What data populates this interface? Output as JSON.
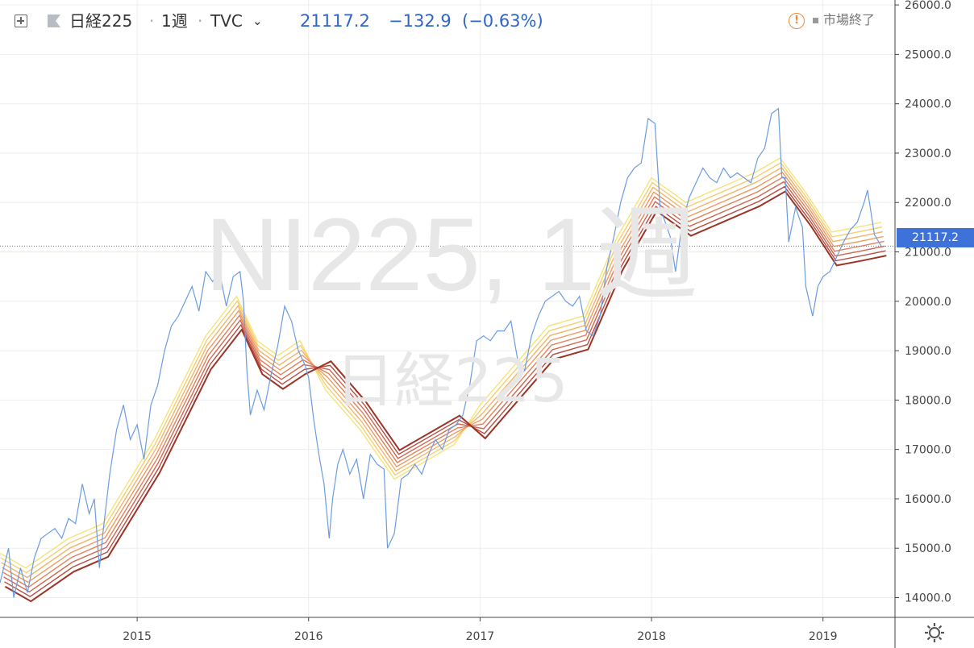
{
  "toolbar": {
    "symbol": "日経225",
    "interval": "1週",
    "source": "TVC",
    "last": "21117.2",
    "change": "−132.9",
    "change_pct": "(−0.63%)",
    "market_status": "市場終了",
    "expand_icon": "expand-icon",
    "flag_icon": "flag-icon",
    "alert_icon": "warning-icon"
  },
  "watermark": {
    "line1": "NI225, 1週",
    "line2": "日経225"
  },
  "price_label": "21117.2",
  "colors": {
    "price_line": "#6b9be0",
    "accent": "#3e72d8",
    "ribbon": [
      "#f5e37a",
      "#f4cf72",
      "#f2b46a",
      "#ec9a62",
      "#e0805a",
      "#cf6650",
      "#b84c42",
      "#9c3426"
    ]
  },
  "chart_data": {
    "type": "line",
    "title": "",
    "xlabel": "",
    "ylabel": "",
    "x_ticks": [
      "2015",
      "2016",
      "2017",
      "2018",
      "2019"
    ],
    "x_tick_years": [
      2015.0,
      2016.0,
      2017.0,
      2018.0,
      2019.0
    ],
    "x_range": [
      2014.2,
      2019.42
    ],
    "y_ticks": [
      14000,
      15000,
      16000,
      17000,
      18000,
      19000,
      20000,
      21000,
      22000,
      23000,
      24000,
      25000,
      26000
    ],
    "y_tick_labels": [
      "14000.0",
      "15000.0",
      "16000.0",
      "17000.0",
      "18000.0",
      "19000.0",
      "20000.0",
      "21000.0",
      "22000.0",
      "23000.0",
      "24000.0",
      "25000.0",
      "26000.0"
    ],
    "ylim": [
      13600,
      26100
    ],
    "grid": true,
    "last_value": 21117.2,
    "price": [
      [
        2014.2,
        14300
      ],
      [
        2014.25,
        15000
      ],
      [
        2014.28,
        14000
      ],
      [
        2014.32,
        14600
      ],
      [
        2014.36,
        14100
      ],
      [
        2014.4,
        14800
      ],
      [
        2014.44,
        15200
      ],
      [
        2014.48,
        15300
      ],
      [
        2014.52,
        15400
      ],
      [
        2014.56,
        15200
      ],
      [
        2014.6,
        15600
      ],
      [
        2014.64,
        15500
      ],
      [
        2014.68,
        16300
      ],
      [
        2014.72,
        15700
      ],
      [
        2014.75,
        16000
      ],
      [
        2014.78,
        14600
      ],
      [
        2014.8,
        15300
      ],
      [
        2014.84,
        16500
      ],
      [
        2014.88,
        17400
      ],
      [
        2014.92,
        17900
      ],
      [
        2014.96,
        17200
      ],
      [
        2015.0,
        17500
      ],
      [
        2015.04,
        16800
      ],
      [
        2015.08,
        17900
      ],
      [
        2015.12,
        18300
      ],
      [
        2015.16,
        19000
      ],
      [
        2015.2,
        19500
      ],
      [
        2015.24,
        19700
      ],
      [
        2015.28,
        20000
      ],
      [
        2015.32,
        20300
      ],
      [
        2015.36,
        19800
      ],
      [
        2015.4,
        20600
      ],
      [
        2015.44,
        20400
      ],
      [
        2015.48,
        20600
      ],
      [
        2015.52,
        19900
      ],
      [
        2015.56,
        20500
      ],
      [
        2015.6,
        20600
      ],
      [
        2015.62,
        20000
      ],
      [
        2015.64,
        18600
      ],
      [
        2015.66,
        17700
      ],
      [
        2015.7,
        18200
      ],
      [
        2015.74,
        17800
      ],
      [
        2015.78,
        18500
      ],
      [
        2015.82,
        19100
      ],
      [
        2015.86,
        19900
      ],
      [
        2015.9,
        19600
      ],
      [
        2015.94,
        19000
      ],
      [
        2015.98,
        18700
      ],
      [
        2016.0,
        18450
      ],
      [
        2016.03,
        17600
      ],
      [
        2016.06,
        16900
      ],
      [
        2016.09,
        16300
      ],
      [
        2016.12,
        15200
      ],
      [
        2016.14,
        16000
      ],
      [
        2016.17,
        16700
      ],
      [
        2016.2,
        17000
      ],
      [
        2016.24,
        16500
      ],
      [
        2016.28,
        16800
      ],
      [
        2016.32,
        16000
      ],
      [
        2016.36,
        16900
      ],
      [
        2016.4,
        16700
      ],
      [
        2016.44,
        16600
      ],
      [
        2016.46,
        15000
      ],
      [
        2016.5,
        15300
      ],
      [
        2016.54,
        16400
      ],
      [
        2016.58,
        16500
      ],
      [
        2016.62,
        16700
      ],
      [
        2016.66,
        16500
      ],
      [
        2016.7,
        16900
      ],
      [
        2016.74,
        17200
      ],
      [
        2016.78,
        17000
      ],
      [
        2016.82,
        17400
      ],
      [
        2016.86,
        17500
      ],
      [
        2016.9,
        17700
      ],
      [
        2016.94,
        18300
      ],
      [
        2016.98,
        19200
      ],
      [
        2017.02,
        19300
      ],
      [
        2017.06,
        19200
      ],
      [
        2017.1,
        19400
      ],
      [
        2017.14,
        19400
      ],
      [
        2017.18,
        19600
      ],
      [
        2017.22,
        18800
      ],
      [
        2017.26,
        18600
      ],
      [
        2017.3,
        19300
      ],
      [
        2017.34,
        19700
      ],
      [
        2017.38,
        20000
      ],
      [
        2017.42,
        20100
      ],
      [
        2017.46,
        20200
      ],
      [
        2017.5,
        20000
      ],
      [
        2017.54,
        19900
      ],
      [
        2017.58,
        20100
      ],
      [
        2017.62,
        19400
      ],
      [
        2017.66,
        19300
      ],
      [
        2017.7,
        19700
      ],
      [
        2017.74,
        20700
      ],
      [
        2017.78,
        21300
      ],
      [
        2017.82,
        22000
      ],
      [
        2017.86,
        22500
      ],
      [
        2017.9,
        22700
      ],
      [
        2017.94,
        22800
      ],
      [
        2017.98,
        23700
      ],
      [
        2018.02,
        23600
      ],
      [
        2018.05,
        21900
      ],
      [
        2018.08,
        21600
      ],
      [
        2018.11,
        21300
      ],
      [
        2018.14,
        20600
      ],
      [
        2018.18,
        21600
      ],
      [
        2018.22,
        22100
      ],
      [
        2018.26,
        22400
      ],
      [
        2018.3,
        22700
      ],
      [
        2018.34,
        22500
      ],
      [
        2018.38,
        22400
      ],
      [
        2018.42,
        22700
      ],
      [
        2018.46,
        22500
      ],
      [
        2018.5,
        22600
      ],
      [
        2018.54,
        22500
      ],
      [
        2018.58,
        22400
      ],
      [
        2018.62,
        22900
      ],
      [
        2018.66,
        23100
      ],
      [
        2018.7,
        23800
      ],
      [
        2018.74,
        23900
      ],
      [
        2018.76,
        22500
      ],
      [
        2018.78,
        22500
      ],
      [
        2018.8,
        21200
      ],
      [
        2018.84,
        21900
      ],
      [
        2018.88,
        21500
      ],
      [
        2018.9,
        20300
      ],
      [
        2018.94,
        19700
      ],
      [
        2018.97,
        20300
      ],
      [
        2019.0,
        20500
      ],
      [
        2019.04,
        20600
      ],
      [
        2019.08,
        20900
      ],
      [
        2019.12,
        21200
      ],
      [
        2019.16,
        21450
      ],
      [
        2019.2,
        21600
      ],
      [
        2019.24,
        22000
      ],
      [
        2019.26,
        22250
      ],
      [
        2019.3,
        21350
      ],
      [
        2019.34,
        21117
      ]
    ],
    "ribbon_series": [
      [
        [
          2014.2,
          14900
        ],
        [
          2014.35,
          14600
        ],
        [
          2014.6,
          15200
        ],
        [
          2014.8,
          15500
        ],
        [
          2015.1,
          17200
        ],
        [
          2015.4,
          19300
        ],
        [
          2015.58,
          20100
        ],
        [
          2015.7,
          19200
        ],
        [
          2015.82,
          18900
        ],
        [
          2015.95,
          19200
        ],
        [
          2016.1,
          18200
        ],
        [
          2016.3,
          17400
        ],
        [
          2016.5,
          16400
        ],
        [
          2016.7,
          16800
        ],
        [
          2016.85,
          17100
        ],
        [
          2017.0,
          17900
        ],
        [
          2017.2,
          18700
        ],
        [
          2017.4,
          19500
        ],
        [
          2017.6,
          19700
        ],
        [
          2017.8,
          21300
        ],
        [
          2018.0,
          22500
        ],
        [
          2018.2,
          22000
        ],
        [
          2018.4,
          22300
        ],
        [
          2018.6,
          22600
        ],
        [
          2018.75,
          22900
        ],
        [
          2018.9,
          22200
        ],
        [
          2019.05,
          21400
        ],
        [
          2019.2,
          21500
        ],
        [
          2019.34,
          21600
        ]
      ]
    ]
  }
}
